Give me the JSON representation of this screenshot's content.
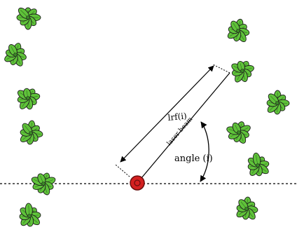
{
  "labels": {
    "range": "lrf(i)",
    "beam": "laser beam",
    "angle": "angle (i)"
  },
  "plants": [
    {
      "name": "plant-left-1"
    },
    {
      "name": "plant-left-2"
    },
    {
      "name": "plant-left-3"
    },
    {
      "name": "plant-left-4"
    },
    {
      "name": "plant-left-5"
    },
    {
      "name": "plant-left-6"
    },
    {
      "name": "plant-right-1"
    },
    {
      "name": "plant-right-2"
    },
    {
      "name": "plant-right-3"
    },
    {
      "name": "plant-right-4"
    },
    {
      "name": "plant-right-5"
    },
    {
      "name": "plant-right-6"
    }
  ],
  "colors": {
    "leaf": "#5fc23a",
    "leaf_outline": "#1d1d1d",
    "sensor": "#d42020",
    "line": "#000000"
  }
}
